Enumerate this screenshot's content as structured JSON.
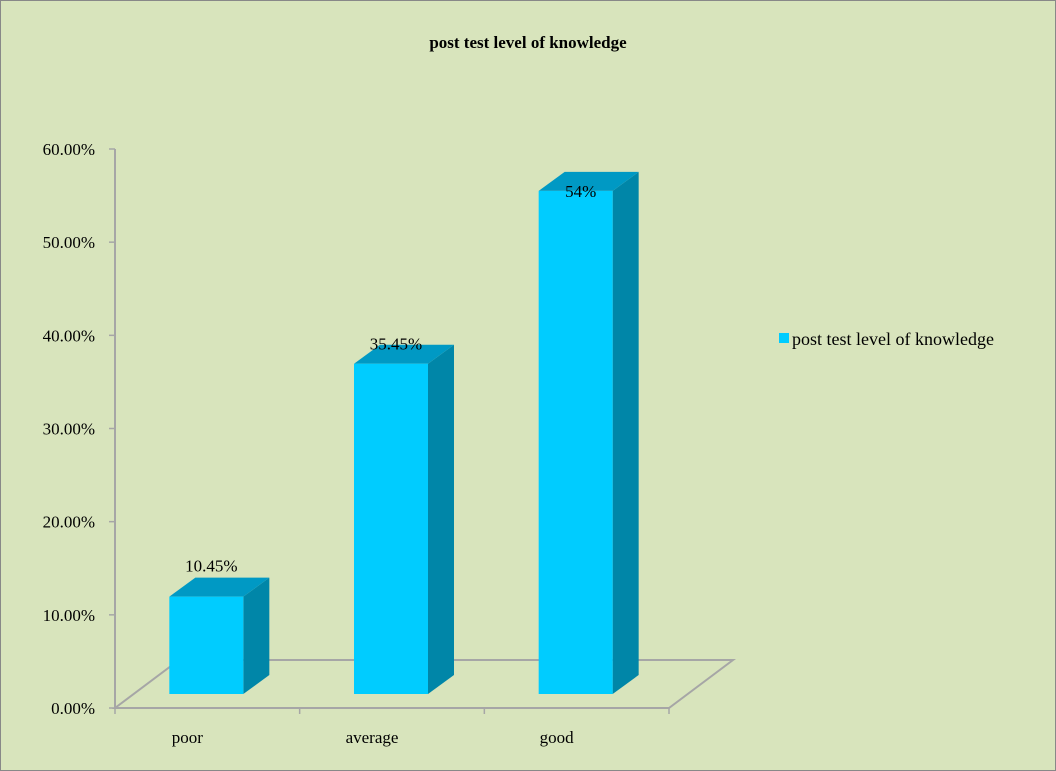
{
  "chart_data": {
    "type": "bar",
    "title": "post test level of knowledge",
    "categories": [
      "poor",
      "average",
      "good"
    ],
    "series": [
      {
        "name": "post test level of knowledge",
        "values": [
          0.1045,
          0.3545,
          0.54
        ],
        "value_labels": [
          "10.45%",
          "35.45%",
          "54%"
        ]
      }
    ],
    "yticks": [
      "0.00%",
      "10.00%",
      "20.00%",
      "30.00%",
      "40.00%",
      "50.00%",
      "60.00%"
    ],
    "ylim": [
      0,
      0.6
    ],
    "legend_position": "right",
    "colors": {
      "bar_front": "#00ccff",
      "bar_side": "#0086a8",
      "bar_top": "#0099c4",
      "background": "#d8e4bc",
      "axis": "#a6a6a6"
    }
  }
}
